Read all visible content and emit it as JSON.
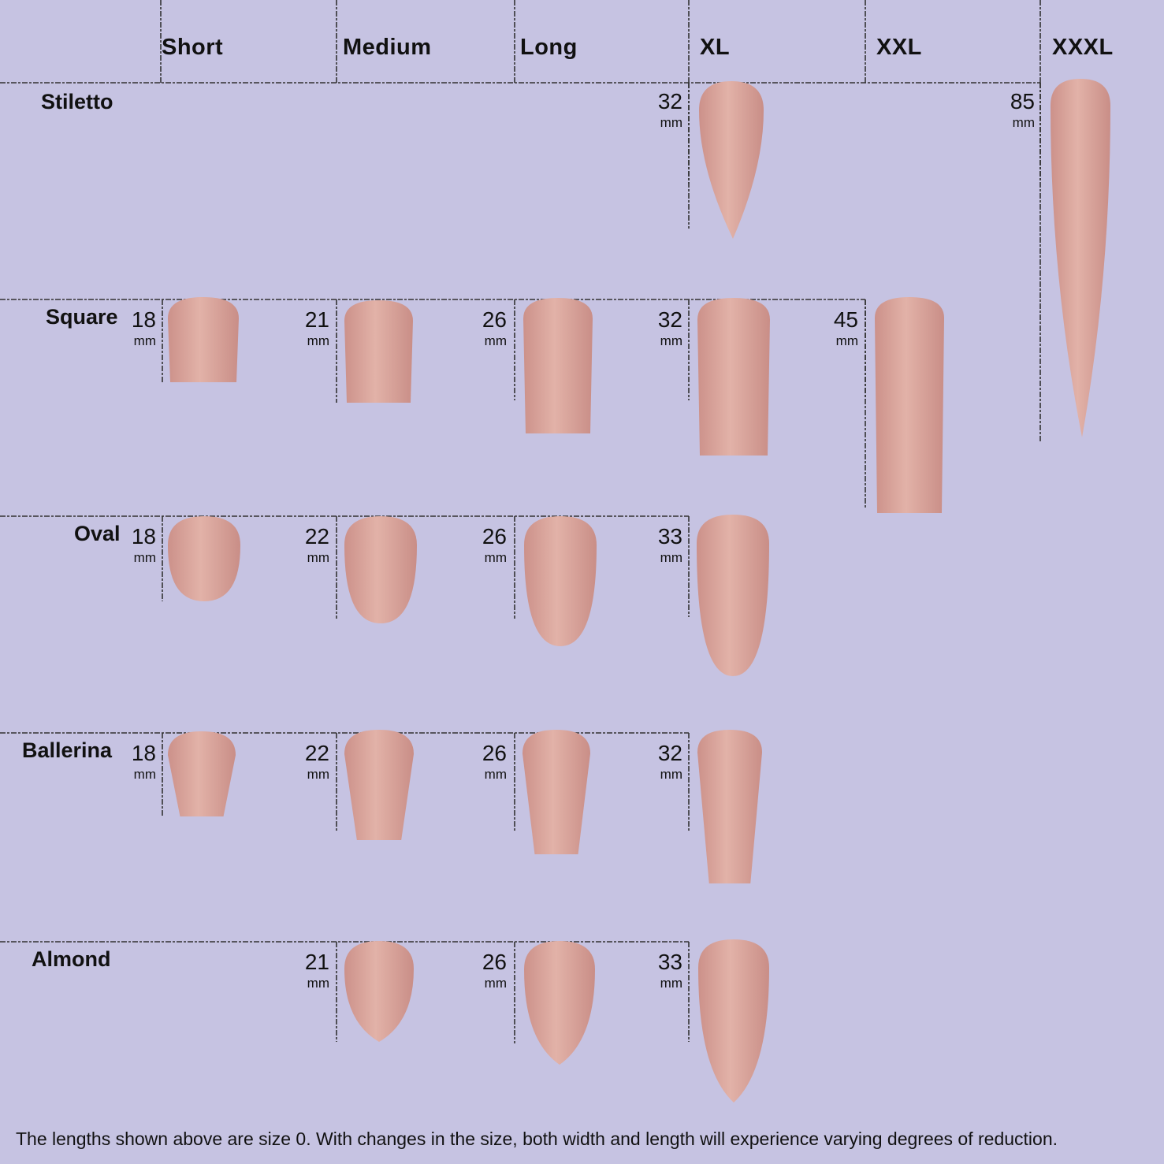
{
  "columns": [
    "Short",
    "Medium",
    "Long",
    "XL",
    "XXL",
    "XXXL"
  ],
  "rows": [
    {
      "shape": "Stiletto",
      "sizes": [
        null,
        null,
        null,
        {
          "value": "32",
          "unit": "mm"
        },
        null,
        {
          "value": "85",
          "unit": "mm"
        }
      ]
    },
    {
      "shape": "Square",
      "sizes": [
        {
          "value": "18",
          "unit": "mm"
        },
        {
          "value": "21",
          "unit": "mm"
        },
        {
          "value": "26",
          "unit": "mm"
        },
        {
          "value": "32",
          "unit": "mm"
        },
        {
          "value": "45",
          "unit": "mm"
        },
        null
      ]
    },
    {
      "shape": "Oval",
      "sizes": [
        {
          "value": "18",
          "unit": "mm"
        },
        {
          "value": "22",
          "unit": "mm"
        },
        {
          "value": "26",
          "unit": "mm"
        },
        {
          "value": "33",
          "unit": "mm"
        },
        null,
        null
      ]
    },
    {
      "shape": "Ballerina",
      "sizes": [
        {
          "value": "18",
          "unit": "mm"
        },
        {
          "value": "22",
          "unit": "mm"
        },
        {
          "value": "26",
          "unit": "mm"
        },
        {
          "value": "32",
          "unit": "mm"
        },
        null,
        null
      ]
    },
    {
      "shape": "Almond",
      "sizes": [
        null,
        {
          "value": "21",
          "unit": "mm"
        },
        {
          "value": "26",
          "unit": "mm"
        },
        {
          "value": "33",
          "unit": "mm"
        },
        null,
        null
      ]
    }
  ],
  "footnote": "The lengths shown above are size 0. With changes in the size, both width and length will experience varying degrees of reduction.",
  "colors": {
    "background": "#c6c3e2",
    "nail": "#d9a39a",
    "nail_highlight": "#e6b8ae",
    "line": "#333333"
  }
}
